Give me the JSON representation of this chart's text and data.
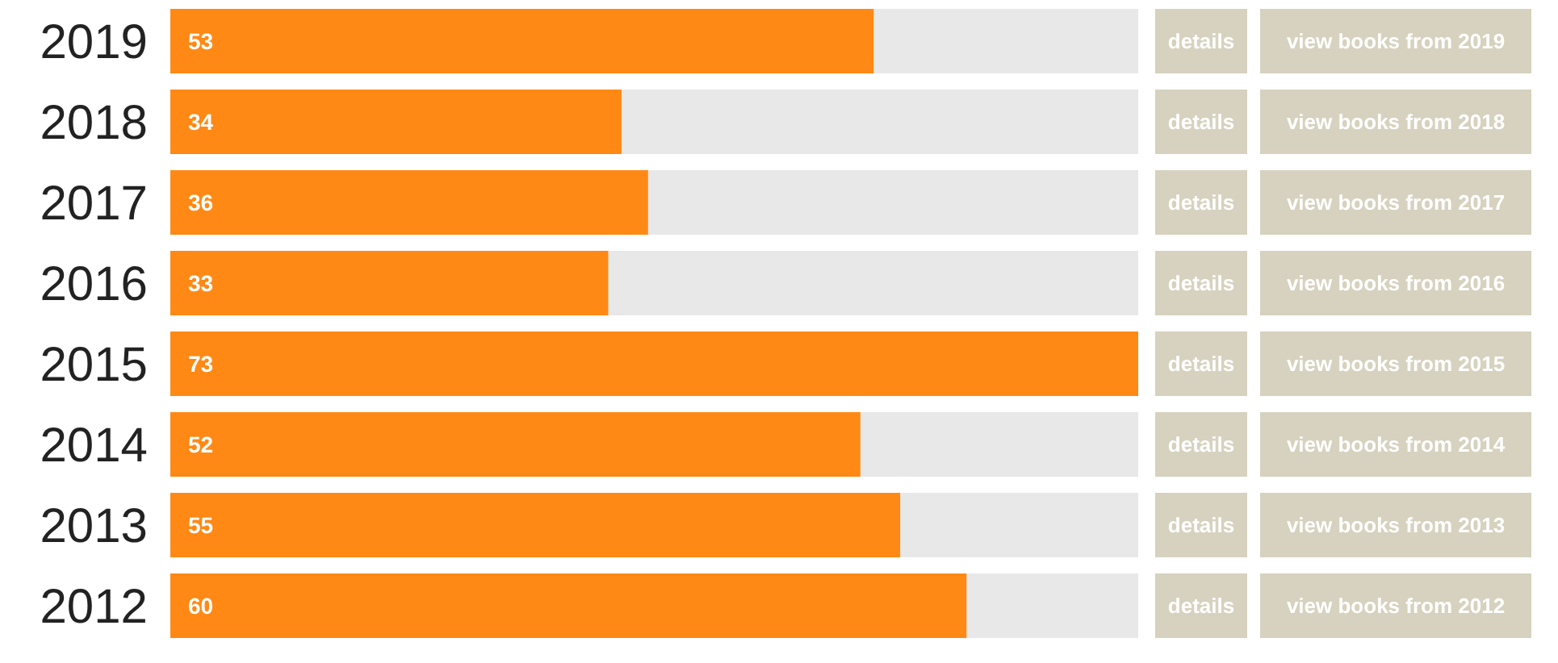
{
  "chart_data": {
    "type": "bar",
    "orientation": "horizontal",
    "categories": [
      "2019",
      "2018",
      "2017",
      "2016",
      "2015",
      "2014",
      "2013",
      "2012"
    ],
    "values": [
      53,
      34,
      36,
      33,
      73,
      52,
      55,
      60
    ],
    "color": "#ff8914",
    "xlim": [
      0,
      73
    ],
    "data_labels": true,
    "grid": false,
    "annotations": [
      "details",
      "view books from 2019",
      "details",
      "view books from 2018",
      "details",
      "view books from 2017",
      "details",
      "view books from 2016",
      "details",
      "view books from 2015",
      "details",
      "view books from 2014",
      "details",
      "view books from 2013",
      "details",
      "view books from 2012"
    ]
  }
}
